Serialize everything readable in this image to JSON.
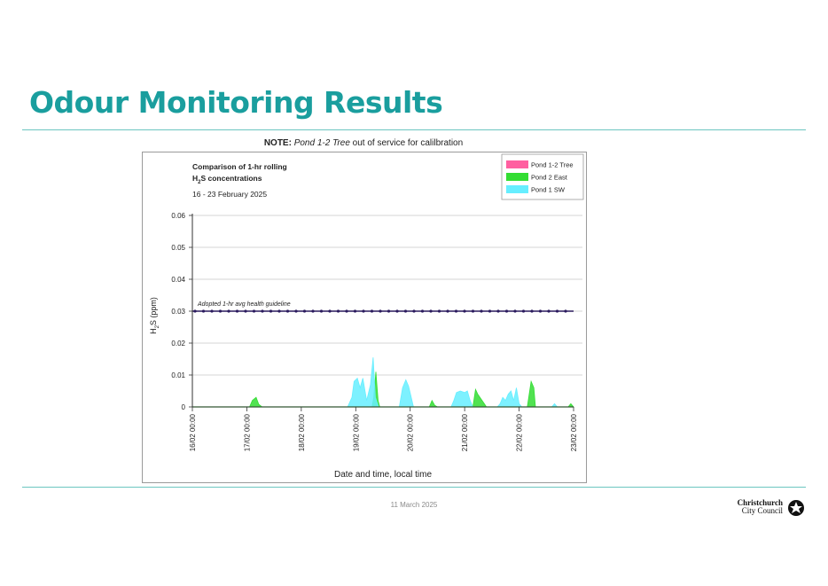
{
  "slide": {
    "title": "Odour Monitoring Results",
    "footer_date": "11 March 2025",
    "logo_line1": "Christchurch",
    "logo_line2": "City Council"
  },
  "note": {
    "label": "NOTE:",
    "subject": "Pond 1-2 Tree",
    "text": " out of service for calilbration"
  },
  "chart_data": {
    "type": "area",
    "title_line1": "Comparison of 1-hr rolling",
    "title_line2": "H2S concentrations",
    "subtitle": "16 - 23 February 2025",
    "xlabel": "Date and time, local time",
    "ylabel": "H2S (ppm)",
    "ylim": [
      0,
      0.06
    ],
    "yticks": [
      "0",
      "0.01",
      "0.02",
      "0.03",
      "0.04",
      "0.05",
      "0.06"
    ],
    "xticks": [
      "16/02 00:00",
      "17/02 00:00",
      "18/02 00:00",
      "19/02 00:00",
      "20/02 00:00",
      "21/02 00:00",
      "22/02 00:00",
      "23/02 00:00"
    ],
    "grid": true,
    "legend_position": "top-right",
    "guideline": {
      "label": "Adopted 1-hr avg health guideline",
      "value": 0.03,
      "color": "#2b1b5e"
    },
    "series": [
      {
        "name": "Pond 1-2 Tree",
        "color": "#ff5fa0",
        "points": []
      },
      {
        "name": "Pond 2 East",
        "color": "#33dd33",
        "points": [
          [
            0,
            0
          ],
          [
            1.05,
            0
          ],
          [
            1.1,
            0.002
          ],
          [
            1.17,
            0.003
          ],
          [
            1.22,
            0.0008
          ],
          [
            1.28,
            0
          ],
          [
            3.3,
            0
          ],
          [
            3.33,
            0.003
          ],
          [
            3.37,
            0.011
          ],
          [
            3.41,
            0.002
          ],
          [
            3.44,
            0
          ],
          [
            4.35,
            0
          ],
          [
            4.4,
            0.002
          ],
          [
            4.45,
            0.0005
          ],
          [
            4.5,
            0
          ],
          [
            5.15,
            0
          ],
          [
            5.2,
            0.0055
          ],
          [
            5.24,
            0.004
          ],
          [
            5.3,
            0.0025
          ],
          [
            5.36,
            0.001
          ],
          [
            5.4,
            0
          ],
          [
            6.15,
            0
          ],
          [
            6.22,
            0.008
          ],
          [
            6.27,
            0.006
          ],
          [
            6.3,
            0
          ],
          [
            6.9,
            0
          ],
          [
            6.95,
            0.001
          ],
          [
            7,
            0
          ]
        ]
      },
      {
        "name": "Pond 1 SW",
        "color": "#66eeff",
        "points": [
          [
            0,
            0
          ],
          [
            2.85,
            0
          ],
          [
            2.93,
            0.003
          ],
          [
            2.97,
            0.008
          ],
          [
            3.03,
            0.009
          ],
          [
            3.08,
            0.006
          ],
          [
            3.13,
            0.009
          ],
          [
            3.2,
            0.002
          ],
          [
            3.27,
            0.007
          ],
          [
            3.32,
            0.0155
          ],
          [
            3.36,
            0.003
          ],
          [
            3.42,
            0
          ],
          [
            3.8,
            0
          ],
          [
            3.86,
            0.006
          ],
          [
            3.92,
            0.0085
          ],
          [
            3.97,
            0.0065
          ],
          [
            4.02,
            0.003
          ],
          [
            4.06,
            0
          ],
          [
            4.75,
            0
          ],
          [
            4.8,
            0.002
          ],
          [
            4.85,
            0.0045
          ],
          [
            4.92,
            0.005
          ],
          [
            5.0,
            0.0045
          ],
          [
            5.05,
            0.005
          ],
          [
            5.1,
            0.002
          ],
          [
            5.15,
            0
          ],
          [
            5.6,
            0
          ],
          [
            5.65,
            0.001
          ],
          [
            5.7,
            0.003
          ],
          [
            5.75,
            0.002
          ],
          [
            5.8,
            0.004
          ],
          [
            5.85,
            0.005
          ],
          [
            5.9,
            0.002
          ],
          [
            5.95,
            0.006
          ],
          [
            6.0,
            0.001
          ],
          [
            6.05,
            0
          ],
          [
            6.6,
            0
          ],
          [
            6.65,
            0.001
          ],
          [
            6.7,
            0
          ]
        ]
      }
    ]
  }
}
